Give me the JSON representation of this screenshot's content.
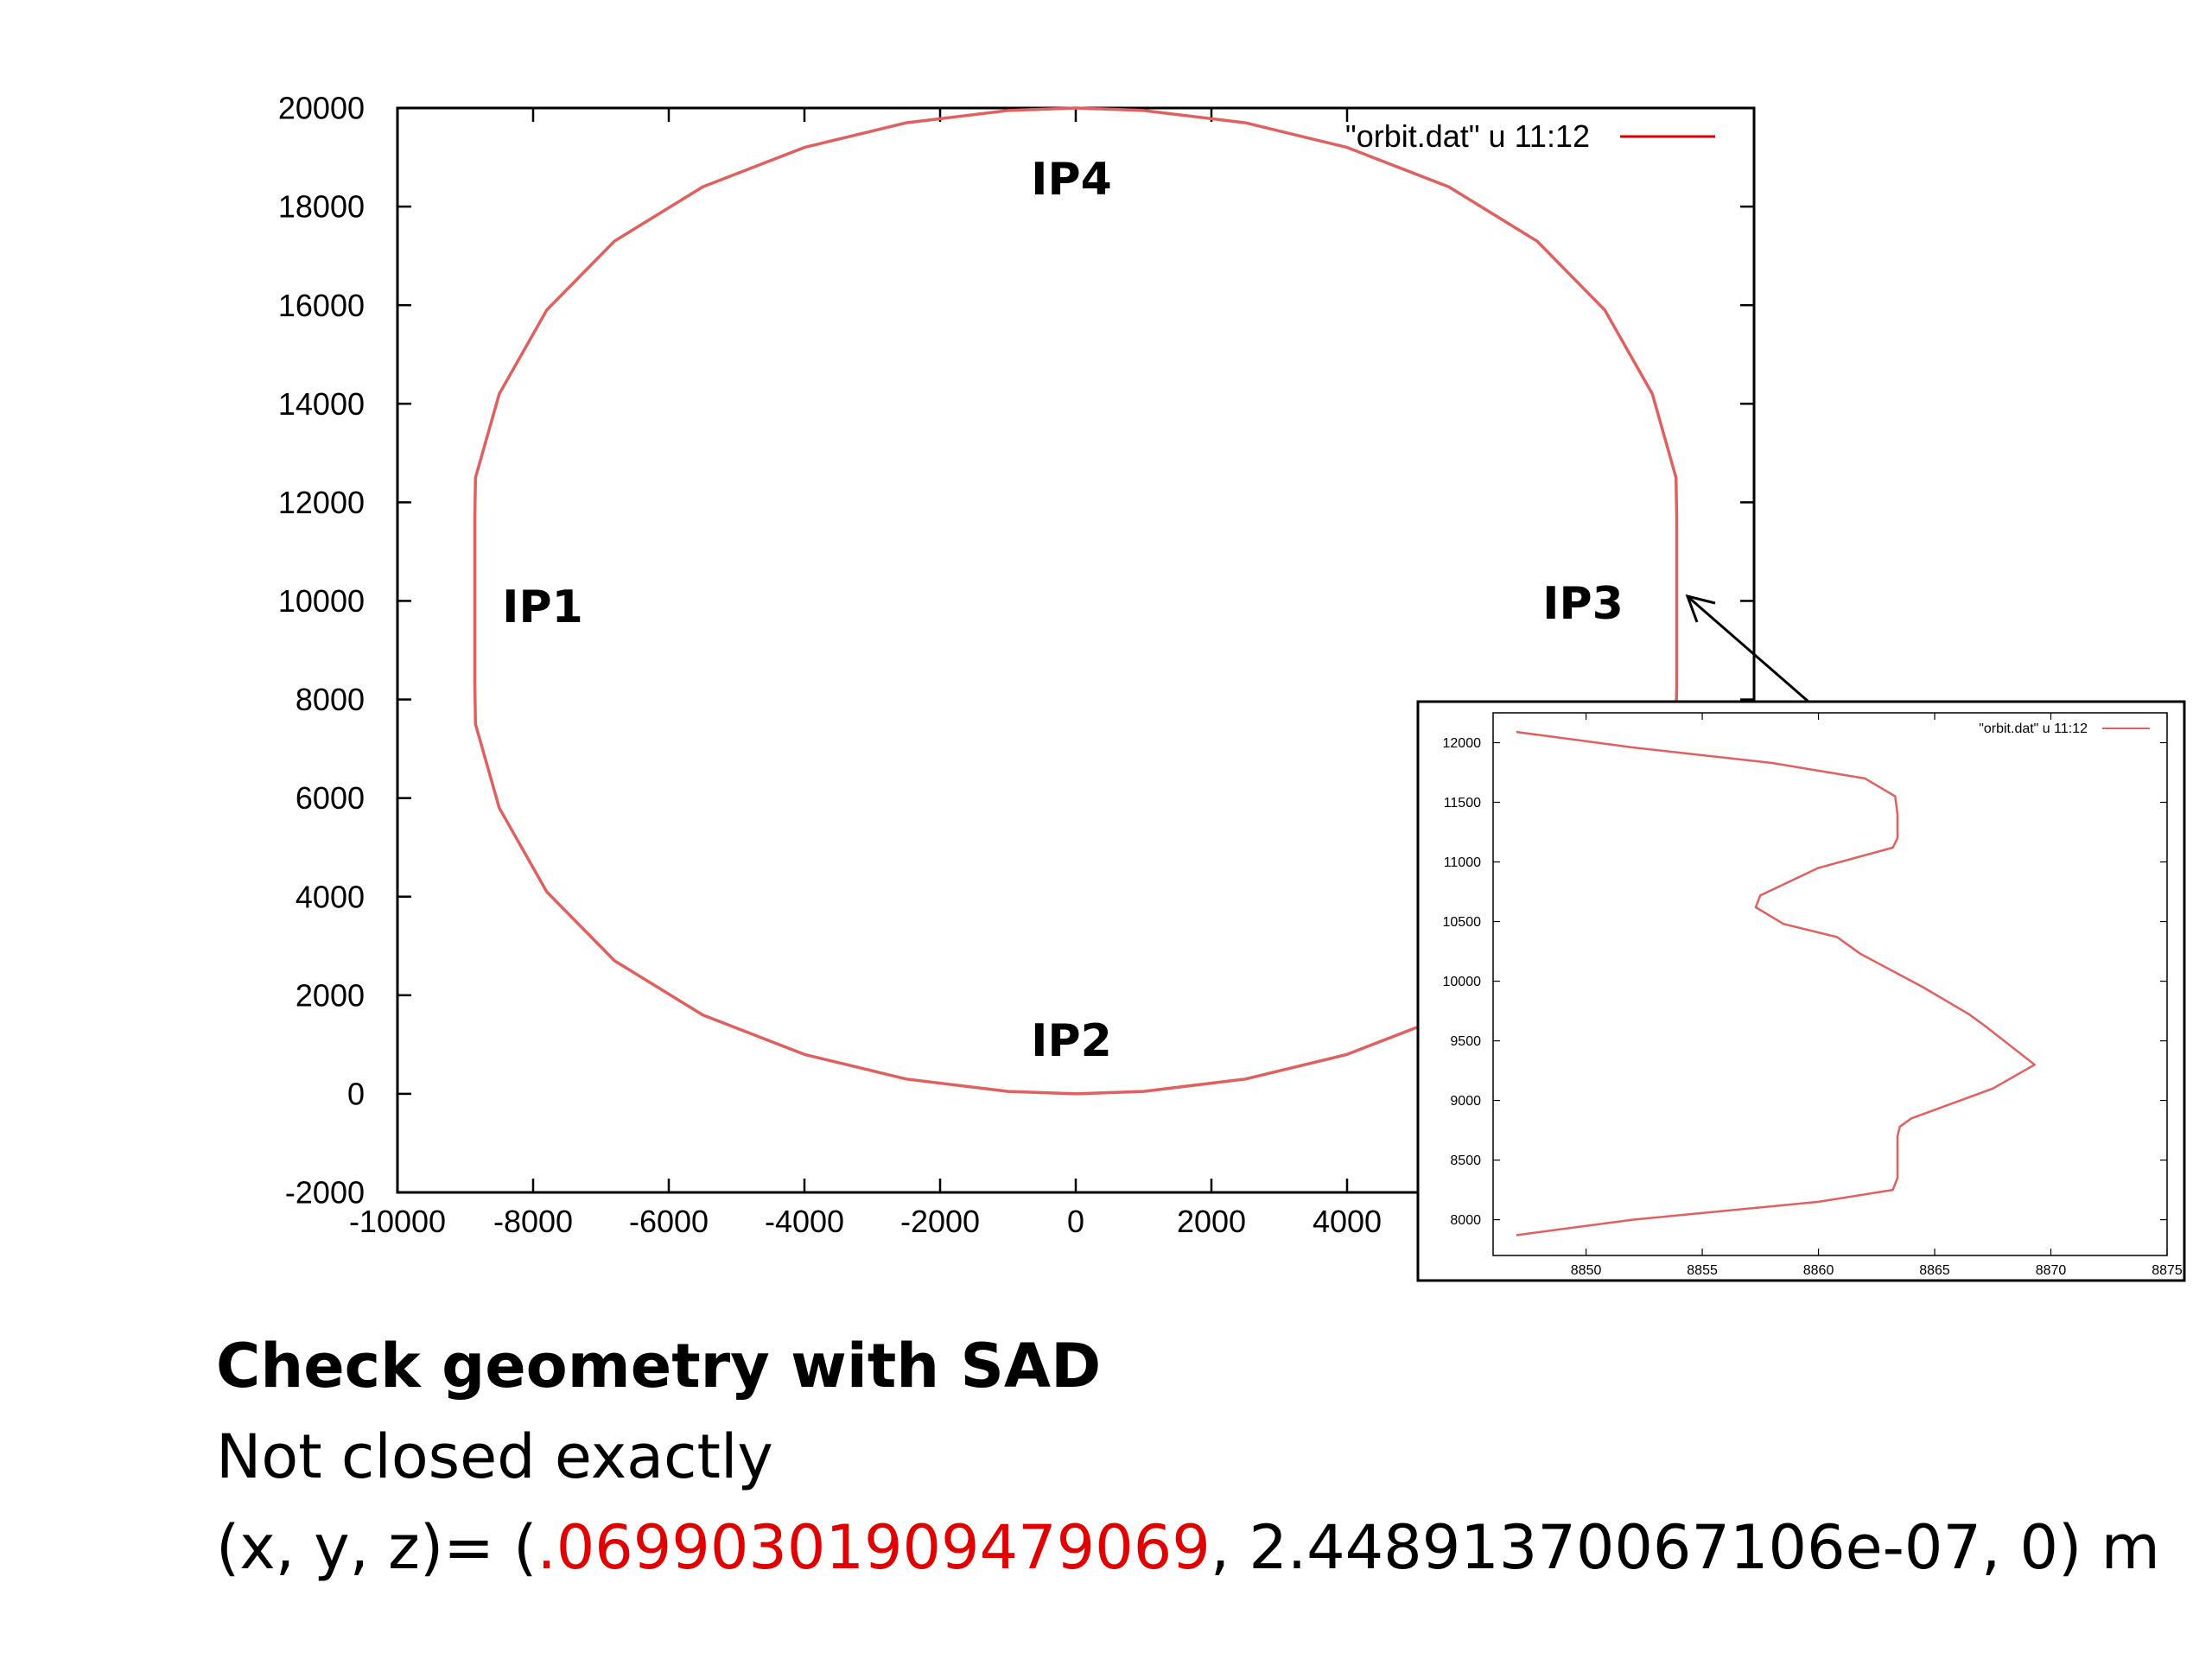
{
  "main_plot": {
    "type": "line",
    "x_ticks": [
      "-10000",
      "-8000",
      "-6000",
      "-4000",
      "-2000",
      "0",
      "2000",
      "4000"
    ],
    "y_ticks": [
      "20000",
      "18000",
      "16000",
      "14000",
      "12000",
      "10000",
      "8000",
      "6000",
      "4000",
      "2000",
      "0",
      "-2000"
    ],
    "xlim": [
      -10000,
      10000
    ],
    "ylim": [
      -2000,
      20000
    ],
    "legend": "\"orbit.dat\" u 11:12",
    "legend_position": "top-right",
    "series_color": "#e06060"
  },
  "inset_plot": {
    "type": "line",
    "x_ticks": [
      "8850",
      "8855",
      "8860",
      "8865",
      "8870",
      "8875"
    ],
    "y_ticks": [
      "12000",
      "11500",
      "11000",
      "10500",
      "10000",
      "9500",
      "9000",
      "8500",
      "8000"
    ],
    "xlim": [
      8846,
      8875
    ],
    "ylim": [
      7700,
      12250
    ],
    "legend": "\"orbit.dat\" u 11:12",
    "legend_position": "top-right",
    "series_color": "#e06060"
  },
  "annotations": {
    "ip1": "IP1",
    "ip2": "IP2",
    "ip3": "IP3",
    "ip4": "IP4"
  },
  "caption": {
    "title": "Check geometry with SAD",
    "subtitle": "Not closed exactly",
    "vector_prefix": "(x, y, z)= (",
    "vector_x": ".06990301909479069",
    "vector_rest": ",  2.44891370067106e-07,  0) m"
  },
  "colors": {
    "accent_red": "#e00000",
    "curve": "#e06060"
  },
  "chart_data": [
    {
      "type": "line",
      "title": "",
      "xlabel": "",
      "ylabel": "",
      "xlim": [
        -10000,
        10000
      ],
      "ylim": [
        -2000,
        20000
      ],
      "series": [
        {
          "name": "\"orbit.dat\" u 11:12",
          "x": [
            0,
            1000,
            2500,
            4000,
            5500,
            6800,
            7800,
            8500,
            8850,
            8860,
            8860,
            8850,
            8500,
            7800,
            6800,
            5500,
            4000,
            2500,
            1000,
            0,
            -1000,
            -2500,
            -4000,
            -5500,
            -6800,
            -7800,
            -8500,
            -8850,
            -8860,
            -8860,
            -8850,
            -8500,
            -7800,
            -6800,
            -5500,
            -4000,
            -2500,
            -1000,
            0
          ],
          "y": [
            0,
            50,
            300,
            800,
            1600,
            2700,
            4100,
            5800,
            7500,
            8300,
            11700,
            12500,
            14200,
            15900,
            17300,
            18400,
            19200,
            19700,
            19950,
            20000,
            19950,
            19700,
            19200,
            18400,
            17300,
            15900,
            14200,
            12500,
            11700,
            8300,
            7500,
            5800,
            4100,
            2700,
            1600,
            800,
            300,
            50,
            0
          ]
        }
      ]
    },
    {
      "type": "line",
      "title": "",
      "xlabel": "",
      "ylabel": "",
      "xlim": [
        8846,
        8875
      ],
      "ylim": [
        7700,
        12250
      ],
      "series": [
        {
          "name": "\"orbit.dat\" u 11:12",
          "x": [
            8847,
            8852,
            8858,
            8862,
            8863.3,
            8863.4,
            8863.4,
            8863.2,
            8860,
            8857.5,
            8857.3,
            8858.5,
            8860.8,
            8861.8,
            8864.5,
            8866.5,
            8867.2,
            8869.3,
            8867.5,
            8864,
            8863.5,
            8863.4,
            8863.4,
            8863.2,
            8860,
            8852,
            8847
          ],
          "y": [
            12090,
            11960,
            11830,
            11700,
            11550,
            11400,
            11200,
            11120,
            10950,
            10720,
            10620,
            10480,
            10370,
            10230,
            9950,
            9720,
            9620,
            9300,
            9100,
            8850,
            8780,
            8700,
            8350,
            8250,
            8150,
            8000,
            7870
          ]
        }
      ]
    }
  ]
}
